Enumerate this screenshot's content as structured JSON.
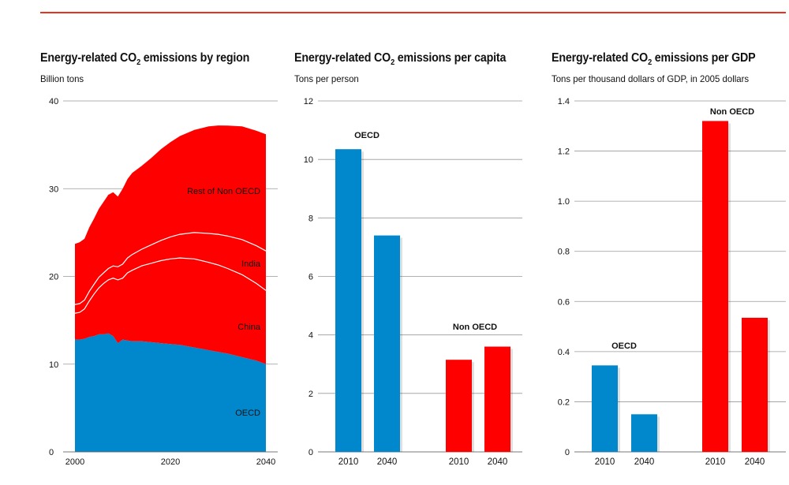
{
  "colors": {
    "oecd": "#0087cc",
    "non_oecd": "#ff0000",
    "accent_rule": "#e8321e",
    "gridline": "#999999"
  },
  "chart_data": [
    {
      "type": "area",
      "title": {
        "main": "Energy-related CO",
        "sub": "2",
        "rest": " emissions by region"
      },
      "ylabel": "Billion tons",
      "xlabel": "",
      "xlim": [
        2000,
        2040
      ],
      "ylim": [
        0,
        40
      ],
      "xticks": [
        "2000",
        "2020",
        "2040"
      ],
      "yticks": [
        "0",
        "10",
        "20",
        "30",
        "40"
      ],
      "stack_order": [
        "OECD",
        "China",
        "India",
        "Rest of Non OECD"
      ],
      "x": [
        2000,
        2001,
        2002,
        2003,
        2004,
        2005,
        2006,
        2007,
        2008,
        2009,
        2010,
        2011,
        2012,
        2014,
        2016,
        2018,
        2020,
        2022,
        2025,
        2028,
        2030,
        2032,
        2035,
        2038,
        2040
      ],
      "series": [
        {
          "name": "OECD",
          "color": "#0087cc",
          "values": [
            12.8,
            12.8,
            12.9,
            13.1,
            13.2,
            13.4,
            13.4,
            13.5,
            13.2,
            12.4,
            12.8,
            12.7,
            12.6,
            12.6,
            12.5,
            12.4,
            12.3,
            12.2,
            11.9,
            11.6,
            11.4,
            11.2,
            10.8,
            10.4,
            10.0
          ]
        },
        {
          "name": "China",
          "color": "#ff0000",
          "values": [
            3.0,
            3.1,
            3.4,
            4.1,
            4.8,
            5.3,
            5.8,
            6.1,
            6.6,
            7.2,
            7.0,
            7.7,
            8.1,
            8.6,
            9.0,
            9.4,
            9.7,
            9.9,
            10.1,
            10.0,
            9.9,
            9.7,
            9.4,
            8.8,
            8.4
          ]
        },
        {
          "name": "India",
          "color": "#ff0000",
          "values": [
            1.0,
            1.0,
            1.0,
            1.1,
            1.1,
            1.2,
            1.2,
            1.3,
            1.4,
            1.5,
            1.6,
            1.7,
            1.8,
            1.9,
            2.1,
            2.3,
            2.5,
            2.7,
            3.0,
            3.3,
            3.5,
            3.7,
            4.0,
            4.3,
            4.5
          ]
        },
        {
          "name": "Rest of Non OECD",
          "color": "#ff0000",
          "values": [
            6.9,
            7.0,
            7.0,
            7.3,
            7.5,
            7.8,
            8.1,
            8.4,
            8.4,
            8.0,
            8.6,
            9.0,
            9.3,
            9.5,
            9.9,
            10.4,
            10.8,
            11.2,
            11.7,
            12.2,
            12.4,
            12.6,
            12.9,
            13.1,
            13.3
          ]
        }
      ],
      "annotations": [
        "Rest of Non OECD",
        "India",
        "China",
        "OECD"
      ]
    },
    {
      "type": "bar",
      "title": {
        "main": "Energy-related CO",
        "sub": "2",
        "rest": " emissions per capita"
      },
      "ylabel": "Tons per person",
      "ylim": [
        0,
        12
      ],
      "yticks": [
        "0",
        "2",
        "4",
        "6",
        "8",
        "10",
        "12"
      ],
      "groups": [
        {
          "name": "OECD",
          "color": "#0087cc",
          "categories": [
            "2010",
            "2040"
          ],
          "values": [
            10.35,
            7.4
          ]
        },
        {
          "name": "Non OECD",
          "color": "#ff0000",
          "categories": [
            "2010",
            "2040"
          ],
          "values": [
            3.15,
            3.6
          ]
        }
      ]
    },
    {
      "type": "bar",
      "title": {
        "main": "Energy-related CO",
        "sub": "2",
        "rest": " emissions per GDP"
      },
      "ylabel": "Tons per thousand dollars of GDP, in 2005 dollars",
      "ylim": [
        0,
        1.4
      ],
      "yticks": [
        "0",
        "0.2",
        "0.4",
        "0.6",
        "0.8",
        "1.0",
        "1.2",
        "1.4"
      ],
      "groups": [
        {
          "name": "OECD",
          "color": "#0087cc",
          "categories": [
            "2010",
            "2040"
          ],
          "values": [
            0.345,
            0.15
          ]
        },
        {
          "name": "Non OECD",
          "color": "#ff0000",
          "categories": [
            "2010",
            "2040"
          ],
          "values": [
            1.32,
            0.535
          ]
        }
      ]
    }
  ]
}
